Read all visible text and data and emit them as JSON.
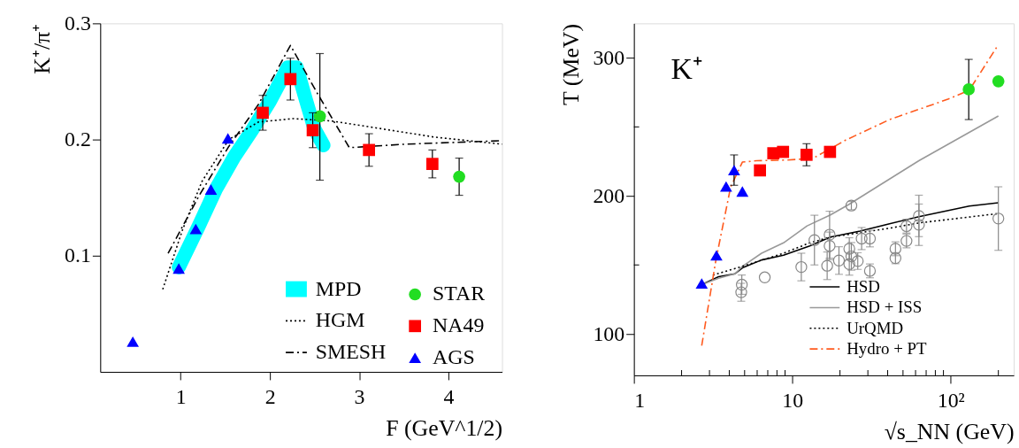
{
  "chart_data": [
    {
      "type": "scatter",
      "xlabel": "F (GeV^1/2)",
      "ylabel": "K⁺/π⁺",
      "xlim": [
        0.1,
        4.6
      ],
      "ylim": [
        0,
        0.3
      ],
      "xticks": [
        1,
        2,
        3,
        4
      ],
      "yticks": [
        0.1,
        0.2,
        0.3
      ],
      "grid": false,
      "legend": "bottom right",
      "series": [
        {
          "name": "MPD",
          "type": "line",
          "color": "#00ffff",
          "line_style": "solid",
          "x": [
            0.98,
            1.2,
            1.4,
            1.6,
            1.8,
            2.0,
            2.2,
            2.3,
            2.4,
            2.5,
            2.6
          ],
          "values": [
            0.09,
            0.125,
            0.158,
            0.185,
            0.208,
            0.233,
            0.262,
            0.262,
            0.235,
            0.209,
            0.195
          ]
        },
        {
          "name": "HGM",
          "type": "line",
          "color": "#000000",
          "line_style": "dotted",
          "x": [
            0.8,
            1.02,
            1.24,
            1.54,
            1.87,
            2.26,
            2.69,
            3.19,
            3.85,
            4.6
          ],
          "values": [
            0.071,
            0.122,
            0.164,
            0.2,
            0.215,
            0.218,
            0.216,
            0.21,
            0.202,
            0.196
          ]
        },
        {
          "name": "SMESH",
          "type": "line",
          "color": "#000000",
          "line_style": "dashed",
          "x": [
            0.86,
            1.21,
            1.54,
            1.87,
            2.23,
            2.53,
            2.89,
            3.52,
            4.6
          ],
          "values": [
            0.102,
            0.152,
            0.194,
            0.23,
            0.281,
            0.24,
            0.193,
            0.196,
            0.199
          ]
        },
        {
          "name": "STAR",
          "type": "scatter",
          "marker": "circle",
          "color": "#22dd22",
          "x": [
            2.56,
            4.12
          ],
          "values": [
            0.22,
            0.168
          ],
          "errors": [
            [
              0.165,
              0.274
            ],
            [
              0.152,
              0.184
            ]
          ]
        },
        {
          "name": "NA49",
          "type": "scatter",
          "marker": "square",
          "color": "#ff0000",
          "x": [
            1.92,
            2.23,
            2.48,
            3.11,
            3.82
          ],
          "values": [
            0.223,
            0.252,
            0.208,
            0.191,
            0.179
          ],
          "errors": [
            0.015,
            0.018,
            0.015,
            0.014,
            0.012
          ]
        },
        {
          "name": "AGS",
          "type": "scatter",
          "marker": "triangle",
          "color": "#0000ff",
          "x": [
            0.465,
            0.98,
            1.17,
            1.34,
            1.53
          ],
          "values": [
            0.026,
            0.089,
            0.123,
            0.157,
            0.201
          ]
        }
      ]
    },
    {
      "type": "line",
      "xlabel": "√s_NN (GeV)",
      "ylabel": "T (MeV)",
      "log": "x",
      "xlim": [
        1,
        250
      ],
      "ylim": [
        70,
        325
      ],
      "grid": false,
      "legend": "bottom right",
      "annotations": [
        "K⁺"
      ],
      "xticks": [
        1,
        {
          "value": 2,
          "label": null
        },
        {
          "value": 3,
          "label": null
        },
        {
          "value": 4,
          "label": null
        },
        {
          "value": 5,
          "label": null
        },
        {
          "value": 6,
          "label": null
        },
        {
          "value": 7,
          "label": null
        },
        {
          "value": 8,
          "label": null
        },
        {
          "value": 9,
          "label": null
        },
        10,
        {
          "value": 20,
          "label": null
        },
        {
          "value": 30,
          "label": null
        },
        {
          "value": 40,
          "label": null
        },
        {
          "value": 50,
          "label": null
        },
        {
          "value": 60,
          "label": null
        },
        {
          "value": 70,
          "label": null
        },
        {
          "value": 80,
          "label": null
        },
        {
          "value": 90,
          "label": null
        },
        {
          "value": 100,
          "label": "10²"
        },
        {
          "value": 200,
          "label": null
        }
      ],
      "yticks": [
        100,
        {
          "value": 150,
          "label": null
        },
        200,
        {
          "value": 250,
          "label": null
        },
        300
      ],
      "series": [
        {
          "name": "HSD",
          "color": "#000000",
          "line_style": "solid",
          "x": [
            2.68,
            3.43,
            4.35,
            4.84,
            6.4,
            8.8,
            12.9,
            17.4,
            26.8,
            41.1,
            63,
            131,
            200
          ],
          "values": [
            135.7,
            141.5,
            143.6,
            147.9,
            153.6,
            157,
            163.8,
            170.2,
            174.5,
            179.8,
            185,
            192.6,
            195.1
          ]
        },
        {
          "name": "HSD + ISS",
          "color": "#999999",
          "line_style": "solid",
          "x": [
            2.68,
            3.43,
            4.35,
            4.84,
            6.4,
            8.8,
            12.4,
            17.4,
            22.6,
            63,
            200
          ],
          "values": [
            135.7,
            140.4,
            143.6,
            149,
            158.5,
            166,
            178.3,
            186.2,
            193.6,
            225.5,
            257.9
          ]
        },
        {
          "name": "UrQMD",
          "color": "#000000",
          "line_style": "dotted",
          "x": [
            3.15,
            4.84,
            8.8,
            12.9,
            17.4,
            26.8,
            41.1,
            63,
            200
          ],
          "values": [
            142.6,
            149,
            158.5,
            166,
            170.2,
            173.4,
            176.6,
            180.4,
            187.2
          ]
        },
        {
          "name": "Hydro + PT",
          "color": "#ff5a1e",
          "line_style": "dashed",
          "x": [
            2.68,
            3.29,
            4.08,
            4.84,
            5.98,
            9.2,
            13.5,
            21.7,
            41.1,
            96.9,
            131,
            200
          ],
          "values": [
            91.5,
            153.2,
            206.4,
            224.5,
            225.5,
            226,
            227.2,
            240.4,
            255.3,
            270.2,
            276.6,
            309.6
          ]
        },
        {
          "type": "scatter",
          "marker": "circle",
          "color": "#888888",
          "x": [
            4.76,
            4.8,
            6.7,
            11.4,
            13.8,
            16.6,
            17.2,
            17.2,
            19.7,
            22.9,
            22.9,
            23.6,
            23.6,
            25.9,
            27.4,
            30.9,
            30.9,
            44.8,
            44.8,
            52.6,
            52.6,
            63,
            63,
            200
          ],
          "values": [
            130.2,
            135.7,
            141,
            148.5,
            168,
            149.4,
            171.9,
            163.8,
            153.2,
            161.7,
            150.6,
            156.2,
            193,
            152.8,
            169.1,
            169.1,
            145.7,
            161.7,
            154.9,
            178.1,
            167.4,
            185.5,
            179.1,
            183.6
          ],
          "errors": [
            6.5,
            7,
            null,
            10,
            18,
            10,
            17,
            10,
            10,
            8,
            8,
            10,
            3,
            6,
            8,
            6,
            5,
            5,
            4,
            5,
            5,
            15,
            15,
            23
          ]
        },
        {
          "type": "scatter",
          "marker": "triangle",
          "color": "#0000ff",
          "x": [
            2.68,
            3.32,
            3.82,
            4.29,
            4.84
          ],
          "values": [
            136.6,
            157,
            206.8,
            218.7,
            203.2
          ],
          "errors": [
            null,
            null,
            null,
            11,
            null
          ]
        },
        {
          "type": "scatter",
          "marker": "square",
          "color": "#ff0000",
          "x": [
            6.25,
            7.59,
            8.74,
            12.3,
            17.3
          ],
          "values": [
            218.5,
            230.9,
            231.9,
            229.8,
            231.9
          ],
          "errors": [
            null,
            null,
            null,
            8,
            null
          ]
        },
        {
          "type": "scatter",
          "marker": "circle",
          "color": "#22dd22",
          "x": [
            130,
            200
          ],
          "values": [
            277.2,
            283
          ],
          "errors": [
            [
              255.3,
              298.9
            ],
            null
          ]
        }
      ]
    }
  ]
}
